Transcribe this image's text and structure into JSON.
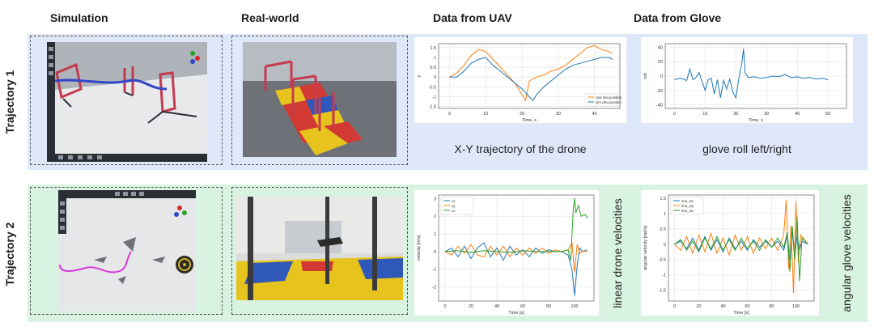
{
  "headers": {
    "simulation": "Simulation",
    "real_world": "Real-world",
    "uav": "Data from UAV",
    "glove": "Data from Glove"
  },
  "rows": {
    "traj1": "Trajectory 1",
    "traj2": "Trajectory 2"
  },
  "captions": {
    "traj1_uav": "X-Y trajectory of the drone",
    "traj1_glove": "glove roll left/right",
    "traj2_uav": "linear drone velocities",
    "traj2_glove": "angular glove velocities"
  },
  "colors": {
    "band1": "#dfe8f9",
    "band2": "#d9f3e2",
    "blue": "#1f77b4",
    "orange": "#ff7f0e",
    "green": "#2ca02c",
    "magenta": "#d63ad6"
  },
  "chart_data": [
    {
      "type": "line",
      "id": "traj1_uav",
      "xlabel": "Time, s",
      "ylabel": "y",
      "xlim": [
        -3,
        47
      ],
      "ylim": [
        -1.6,
        1.7
      ],
      "xticks": [
        0,
        10,
        20,
        30,
        40
      ],
      "yticks": [
        -1.5,
        -1.0,
        -0.5,
        0.0,
        0.5,
        1.0,
        1.5
      ],
      "legend_position": "lower-right",
      "grid": true,
      "series": [
        {
          "name": "real dev.position",
          "color": "#ff7f0e",
          "x": [
            0,
            2,
            4,
            6,
            8,
            10,
            12,
            14,
            16,
            18,
            20,
            21,
            22,
            24,
            26,
            28,
            30,
            32,
            34,
            36,
            38,
            40,
            42,
            44,
            45
          ],
          "y": [
            0,
            0.2,
            0.6,
            1.1,
            1.4,
            1.3,
            0.9,
            0.5,
            0.1,
            -0.3,
            -0.9,
            -1.2,
            -0.2,
            0.0,
            0.1,
            0.3,
            0.4,
            0.6,
            0.9,
            1.2,
            1.5,
            1.6,
            1.4,
            1.3,
            1.2
          ]
        },
        {
          "name": "sim dev.position",
          "color": "#1f77b4",
          "x": [
            0,
            2,
            4,
            6,
            8,
            10,
            12,
            14,
            16,
            18,
            20,
            22,
            23,
            24,
            26,
            28,
            30,
            32,
            34,
            36,
            38,
            40,
            42,
            44,
            45
          ],
          "y": [
            0,
            0,
            0.3,
            0.7,
            0.9,
            1.0,
            0.6,
            0.3,
            0.0,
            -0.3,
            -0.6,
            -1.0,
            -1.2,
            -0.9,
            -0.5,
            -0.2,
            0.1,
            0.4,
            0.6,
            0.7,
            0.8,
            0.9,
            1.0,
            1.0,
            0.9
          ]
        }
      ]
    },
    {
      "type": "line",
      "id": "traj1_glove",
      "xlabel": "Time, s",
      "ylabel": "roll",
      "xlim": [
        -3,
        56
      ],
      "ylim": [
        -45,
        45
      ],
      "xticks": [
        0,
        10,
        20,
        30,
        40,
        50
      ],
      "yticks": [
        -40,
        -20,
        0,
        20,
        40
      ],
      "grid": true,
      "series": [
        {
          "name": "",
          "color": "#1f77b4",
          "x": [
            0,
            2,
            4,
            5,
            6,
            7,
            8,
            9,
            10,
            11,
            12,
            13,
            14,
            15,
            16,
            17,
            18,
            19,
            20,
            21,
            22,
            22.5,
            23,
            24,
            26,
            28,
            30,
            32,
            34,
            36,
            38,
            40,
            42,
            44,
            46,
            48,
            50
          ],
          "y": [
            -5,
            -3,
            -6,
            10,
            -5,
            -2,
            5,
            -8,
            -20,
            -5,
            -3,
            -25,
            -5,
            -30,
            -6,
            -18,
            -4,
            -22,
            -30,
            -3,
            20,
            38,
            5,
            -2,
            -1,
            -3,
            -2,
            0,
            -1,
            2,
            -2,
            -1,
            -3,
            -2,
            -4,
            -3,
            -5
          ]
        }
      ]
    },
    {
      "type": "line",
      "id": "traj2_uav",
      "xlabel": "Time [s]",
      "ylabel": "velocity [m/s]",
      "xlim": [
        -5,
        115
      ],
      "ylim": [
        -2.8,
        3.2
      ],
      "xticks": [
        0,
        20,
        40,
        60,
        80,
        100
      ],
      "yticks": [
        -2,
        -1,
        0,
        1,
        2,
        3
      ],
      "legend_position": "top-left",
      "grid": true,
      "series": [
        {
          "name": "vx",
          "color": "#1f77b4",
          "x": [
            0,
            5,
            10,
            15,
            20,
            25,
            30,
            35,
            40,
            45,
            50,
            55,
            60,
            65,
            70,
            75,
            80,
            85,
            90,
            95,
            98,
            100,
            102,
            104,
            106,
            110
          ],
          "y": [
            0,
            0.2,
            -0.3,
            0.3,
            -0.4,
            0.2,
            0.5,
            -0.3,
            0.2,
            -0.5,
            0.3,
            -0.2,
            0.1,
            -0.3,
            0.2,
            -0.1,
            0.1,
            0,
            0,
            -0.2,
            -1.0,
            -2.5,
            -0.8,
            0.2,
            0,
            0.1
          ]
        },
        {
          "name": "vy",
          "color": "#ff7f0e",
          "x": [
            0,
            5,
            10,
            15,
            20,
            25,
            30,
            35,
            40,
            45,
            50,
            55,
            60,
            65,
            70,
            75,
            80,
            85,
            90,
            95,
            98,
            100,
            102,
            104,
            106,
            110
          ],
          "y": [
            0,
            -0.2,
            0.3,
            -0.1,
            0.4,
            -0.2,
            -0.3,
            0.3,
            -0.2,
            0.3,
            -0.3,
            0.2,
            -0.2,
            0.2,
            -0.1,
            0.2,
            -0.1,
            0.1,
            0,
            0.1,
            0.5,
            -1.2,
            0.4,
            -0.1,
            0,
            0
          ]
        },
        {
          "name": "vz",
          "color": "#2ca02c",
          "x": [
            0,
            10,
            20,
            30,
            40,
            50,
            60,
            70,
            80,
            90,
            95,
            97,
            99,
            100,
            101,
            103,
            105,
            108,
            110
          ],
          "y": [
            0,
            0.05,
            -0.05,
            0.05,
            0,
            -0.05,
            0.05,
            0,
            0,
            0,
            0.1,
            -0.5,
            2.4,
            3.0,
            2.2,
            2.6,
            2.0,
            2.1,
            1.9
          ]
        }
      ]
    },
    {
      "type": "line",
      "id": "traj2_glove",
      "xlabel": "Time [s]",
      "ylabel": "angular velocity [rad/s]",
      "xlim": [
        -5,
        115
      ],
      "ylim": [
        -1.85,
        1.6
      ],
      "xticks": [
        0,
        20,
        40,
        60,
        80,
        100
      ],
      "yticks": [
        -1.5,
        -1.0,
        -0.5,
        0.0,
        0.5,
        1.0,
        1.5
      ],
      "legend_position": "top-left",
      "grid": true,
      "series": [
        {
          "name": "imu_wx",
          "color": "#1f77b4",
          "x": [
            0,
            5,
            10,
            15,
            20,
            25,
            30,
            35,
            40,
            45,
            50,
            55,
            60,
            65,
            70,
            75,
            80,
            85,
            90,
            93,
            95,
            97,
            99,
            101,
            103,
            105,
            110
          ],
          "y": [
            0,
            0.1,
            -0.15,
            0.2,
            -0.2,
            0.25,
            -0.2,
            0.15,
            -0.25,
            0.2,
            -0.15,
            0.1,
            -0.2,
            0.15,
            -0.1,
            0.1,
            -0.1,
            0.1,
            -0.2,
            0.3,
            -0.5,
            0.4,
            -0.4,
            0.3,
            -0.2,
            0.1,
            0
          ]
        },
        {
          "name": "imu_wy",
          "color": "#ff7f0e",
          "x": [
            0,
            5,
            10,
            15,
            20,
            25,
            30,
            35,
            40,
            45,
            50,
            55,
            60,
            65,
            70,
            75,
            80,
            85,
            90,
            92,
            94,
            96,
            98,
            100,
            102,
            104,
            110
          ],
          "y": [
            0,
            -0.2,
            0.25,
            -0.3,
            0.3,
            -0.25,
            0.35,
            -0.3,
            0.2,
            -0.35,
            0.3,
            -0.2,
            0.25,
            -0.3,
            0.2,
            -0.15,
            0.2,
            -0.2,
            0.3,
            1.45,
            -0.8,
            0.6,
            -1.6,
            1.4,
            -0.6,
            0.3,
            0
          ]
        },
        {
          "name": "imu_wz",
          "color": "#2ca02c",
          "x": [
            0,
            5,
            10,
            15,
            20,
            25,
            30,
            35,
            40,
            45,
            50,
            55,
            60,
            65,
            70,
            75,
            80,
            85,
            90,
            93,
            95,
            97,
            99,
            101,
            103,
            105,
            110
          ],
          "y": [
            0,
            0.15,
            -0.2,
            0.1,
            -0.25,
            0.2,
            -0.15,
            0.25,
            -0.2,
            0.15,
            -0.2,
            0.2,
            -0.15,
            0.1,
            -0.2,
            0.15,
            -0.1,
            0.2,
            -0.1,
            0.4,
            -0.9,
            0.6,
            -0.5,
            0.9,
            -1.2,
            0.2,
            0
          ]
        }
      ]
    }
  ]
}
